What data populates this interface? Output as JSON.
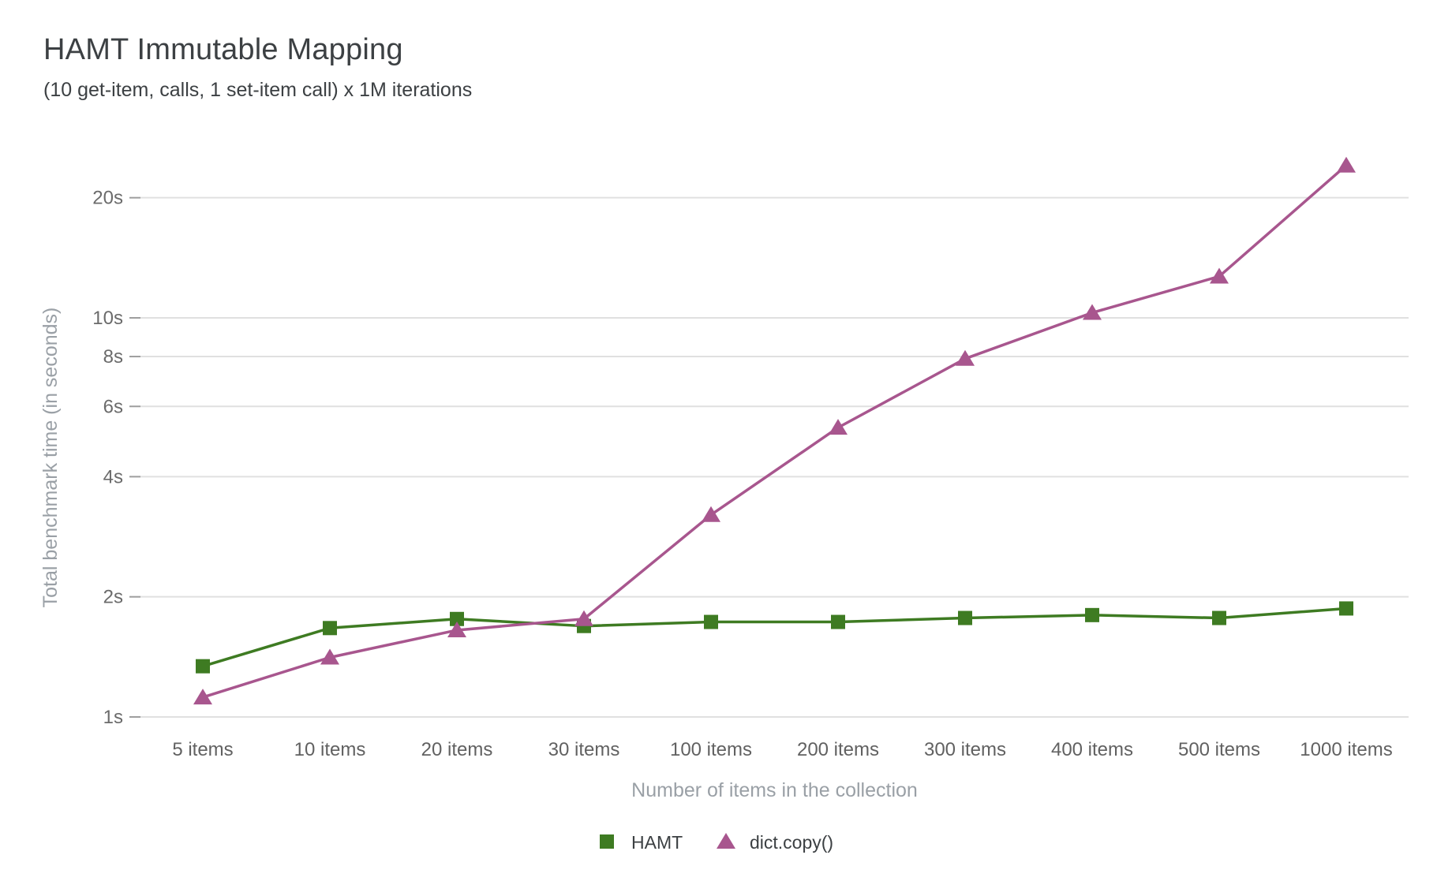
{
  "chart_data": {
    "type": "line",
    "title": "HAMT Immutable Mapping",
    "subtitle": "(10 get-item, calls, 1 set-item call) x 1M iterations",
    "xlabel": "Number of items in the collection",
    "ylabel": "Total benchmark time (in seconds)",
    "y_scale": "log",
    "ylim": [
      1,
      26
    ],
    "grid": true,
    "legend_position": "bottom",
    "y_gridlines": [
      {
        "value": 1,
        "label": "1s"
      },
      {
        "value": 2,
        "label": "2s"
      },
      {
        "value": 4,
        "label": "4s"
      },
      {
        "value": 6,
        "label": "6s"
      },
      {
        "value": 8,
        "label": "8s"
      },
      {
        "value": 10,
        "label": "10s"
      },
      {
        "value": 20,
        "label": "20s"
      }
    ],
    "categories": [
      "5 items",
      "10 items",
      "20 items",
      "30 items",
      "100 items",
      "200 items",
      "300 items",
      "400 items",
      "500 items",
      "1000 items"
    ],
    "series": [
      {
        "name": "HAMT",
        "marker": "square",
        "color": "#3e7b22",
        "values": [
          1.34,
          1.67,
          1.76,
          1.69,
          1.73,
          1.73,
          1.77,
          1.8,
          1.77,
          1.87
        ]
      },
      {
        "name": "dict.copy()",
        "marker": "triangle",
        "color": "#a8568e",
        "values": [
          1.12,
          1.41,
          1.65,
          1.76,
          3.21,
          5.31,
          7.9,
          10.3,
          12.7,
          24.1
        ]
      }
    ],
    "colors": {
      "grid_line": "#e0e0e0",
      "tick_mark": "#9e9e9e",
      "y_tick_label": "#6b6b6b",
      "x_tick_label": "#616161",
      "axis_title": "#9aa0a6",
      "legend_label": "#3c4043",
      "title_text": "#3c4043"
    }
  }
}
